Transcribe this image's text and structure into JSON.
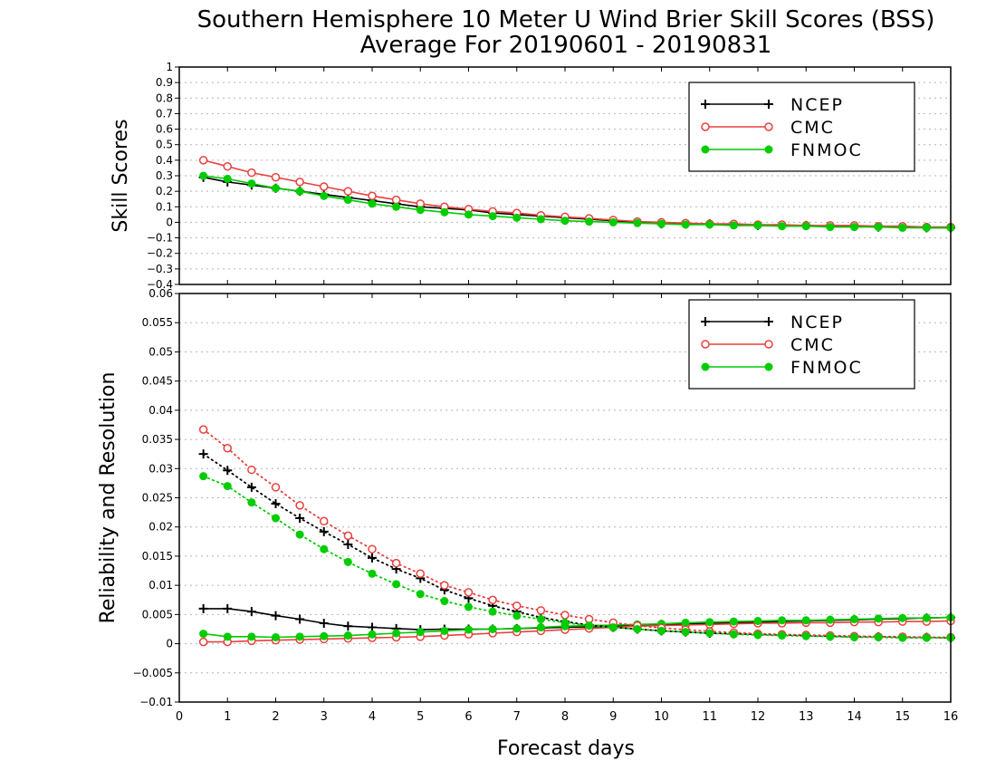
{
  "title_line1": "Southern Hemisphere 10 Meter U Wind Brier Skill Scores (BSS)",
  "title_line2": "Average For 20190601 - 20190831",
  "xlabel": "Forecast days",
  "colors": {
    "NCEP": "#000000",
    "CMC": "#e8403e",
    "FNMOC": "#00cc00"
  },
  "chart_data": [
    {
      "type": "line",
      "ylabel": "Skill Scores",
      "xlim": [
        0,
        16
      ],
      "ylim": [
        -0.4,
        1
      ],
      "x_ticks": [
        "0",
        "1",
        "2",
        "3",
        "4",
        "5",
        "6",
        "7",
        "8",
        "9",
        "10",
        "11",
        "12",
        "13",
        "14",
        "15",
        "16"
      ],
      "y_ticks": [
        "−0.4",
        "−0.3",
        "−0.2",
        "−0.1",
        "0",
        "0.1",
        "0.2",
        "0.3",
        "0.4",
        "0.5",
        "0.6",
        "0.7",
        "0.8",
        "0.9",
        "1"
      ],
      "grid": true,
      "legend_position": "top-right",
      "x": [
        0.5,
        1,
        1.5,
        2,
        2.5,
        3,
        3.5,
        4,
        4.5,
        5,
        5.5,
        6,
        6.5,
        7,
        7.5,
        8,
        8.5,
        9,
        9.5,
        10,
        10.5,
        11,
        11.5,
        12,
        12.5,
        13,
        13.5,
        14,
        14.5,
        15,
        15.5,
        16
      ],
      "series": [
        {
          "name": "NCEP",
          "marker": "plus",
          "line": "solid",
          "values": [
            0.29,
            0.26,
            0.24,
            0.22,
            0.2,
            0.18,
            0.16,
            0.14,
            0.12,
            0.1,
            0.09,
            0.08,
            0.06,
            0.05,
            0.04,
            0.03,
            0.02,
            0.01,
            0.0,
            -0.01,
            -0.01,
            -0.01,
            -0.015,
            -0.02,
            -0.02,
            -0.02,
            -0.025,
            -0.025,
            -0.03,
            -0.03,
            -0.035,
            -0.035
          ]
        },
        {
          "name": "CMC",
          "marker": "open-circle",
          "line": "solid",
          "values": [
            0.4,
            0.36,
            0.32,
            0.29,
            0.26,
            0.23,
            0.2,
            0.17,
            0.145,
            0.12,
            0.1,
            0.085,
            0.07,
            0.06,
            0.045,
            0.035,
            0.025,
            0.015,
            0.005,
            0.0,
            -0.005,
            -0.01,
            -0.01,
            -0.015,
            -0.015,
            -0.02,
            -0.02,
            -0.02,
            -0.025,
            -0.025,
            -0.03,
            -0.03
          ]
        },
        {
          "name": "FNMOC",
          "marker": "filled-circle",
          "line": "solid",
          "values": [
            0.3,
            0.28,
            0.25,
            0.22,
            0.2,
            0.17,
            0.145,
            0.12,
            0.1,
            0.08,
            0.065,
            0.05,
            0.04,
            0.03,
            0.02,
            0.01,
            0.005,
            0.0,
            -0.005,
            -0.01,
            -0.015,
            -0.015,
            -0.02,
            -0.02,
            -0.025,
            -0.025,
            -0.03,
            -0.03,
            -0.03,
            -0.035,
            -0.035,
            -0.035
          ]
        }
      ]
    },
    {
      "type": "line",
      "ylabel": "Reliability and Resolution",
      "xlim": [
        0,
        16
      ],
      "ylim": [
        -0.01,
        0.06
      ],
      "x_ticks": [
        "0",
        "1",
        "2",
        "3",
        "4",
        "5",
        "6",
        "7",
        "8",
        "9",
        "10",
        "11",
        "12",
        "13",
        "14",
        "15",
        "16"
      ],
      "y_ticks": [
        "−0.01",
        "−0.005",
        "0",
        "0.005",
        "0.01",
        "0.015",
        "0.02",
        "0.025",
        "0.03",
        "0.035",
        "0.04",
        "0.045",
        "0.05",
        "0.055",
        "0.06"
      ],
      "grid": true,
      "legend_position": "top-right",
      "x": [
        0.5,
        1,
        1.5,
        2,
        2.5,
        3,
        3.5,
        4,
        4.5,
        5,
        5.5,
        6,
        6.5,
        7,
        7.5,
        8,
        8.5,
        9,
        9.5,
        10,
        10.5,
        11,
        11.5,
        12,
        12.5,
        13,
        13.5,
        14,
        14.5,
        15,
        15.5,
        16
      ],
      "series": [
        {
          "name": "NCEP",
          "marker": "plus",
          "line": "solid",
          "component": "reliability",
          "values": [
            0.006,
            0.006,
            0.0055,
            0.0048,
            0.0042,
            0.0035,
            0.003,
            0.0028,
            0.0026,
            0.0024,
            0.0025,
            0.0025,
            0.0025,
            0.0026,
            0.0027,
            0.0028,
            0.0029,
            0.003,
            0.0031,
            0.0033,
            0.0034,
            0.0035,
            0.0036,
            0.0037,
            0.0038,
            0.0039,
            0.004,
            0.0041,
            0.0042,
            0.0043,
            0.0044,
            0.0045
          ]
        },
        {
          "name": "CMC",
          "marker": "open-circle",
          "line": "solid",
          "component": "reliability",
          "values": [
            0.0003,
            0.0003,
            0.0005,
            0.0006,
            0.0007,
            0.0008,
            0.0009,
            0.001,
            0.0011,
            0.0012,
            0.0014,
            0.0016,
            0.0018,
            0.002,
            0.0022,
            0.0024,
            0.0026,
            0.0028,
            0.003,
            0.0031,
            0.0032,
            0.0033,
            0.0034,
            0.0035,
            0.0035,
            0.0036,
            0.0036,
            0.0037,
            0.0037,
            0.0038,
            0.0038,
            0.0039
          ]
        },
        {
          "name": "FNMOC",
          "marker": "filled-circle",
          "line": "solid",
          "component": "reliability",
          "values": [
            0.0017,
            0.0012,
            0.0012,
            0.0011,
            0.0012,
            0.0013,
            0.0014,
            0.0016,
            0.0018,
            0.002,
            0.0022,
            0.0024,
            0.0025,
            0.0026,
            0.0028,
            0.003,
            0.0031,
            0.0032,
            0.0033,
            0.0034,
            0.0036,
            0.0037,
            0.0038,
            0.0039,
            0.004,
            0.004,
            0.0041,
            0.0042,
            0.0043,
            0.0044,
            0.0044,
            0.0045
          ]
        },
        {
          "name": "NCEP",
          "marker": "plus",
          "line": "dotted",
          "component": "resolution",
          "values": [
            0.0325,
            0.0297,
            0.0268,
            0.024,
            0.0215,
            0.0192,
            0.017,
            0.0147,
            0.0128,
            0.0112,
            0.0092,
            0.0078,
            0.0065,
            0.0055,
            0.0045,
            0.0038,
            0.0032,
            0.0028,
            0.0025,
            0.0022,
            0.002,
            0.0018,
            0.0017,
            0.0016,
            0.0015,
            0.0014,
            0.0013,
            0.0012,
            0.0012,
            0.0011,
            0.0011,
            0.001
          ]
        },
        {
          "name": "CMC",
          "marker": "open-circle",
          "line": "dotted",
          "component": "resolution",
          "values": [
            0.0367,
            0.0335,
            0.0298,
            0.0268,
            0.0237,
            0.021,
            0.0185,
            0.0162,
            0.0138,
            0.012,
            0.01,
            0.0088,
            0.0075,
            0.0065,
            0.0057,
            0.0049,
            0.0042,
            0.0036,
            0.0031,
            0.0027,
            0.0024,
            0.0021,
            0.0019,
            0.0017,
            0.0016,
            0.0015,
            0.0014,
            0.0013,
            0.0012,
            0.0012,
            0.0011,
            0.0011
          ]
        },
        {
          "name": "FNMOC",
          "marker": "filled-circle",
          "line": "dotted",
          "component": "resolution",
          "values": [
            0.0287,
            0.027,
            0.0242,
            0.0215,
            0.0187,
            0.0162,
            0.014,
            0.012,
            0.0102,
            0.0085,
            0.0073,
            0.0063,
            0.0055,
            0.0048,
            0.0042,
            0.0036,
            0.0031,
            0.0028,
            0.0025,
            0.0022,
            0.002,
            0.0018,
            0.0016,
            0.0015,
            0.0014,
            0.0013,
            0.0012,
            0.0011,
            0.0011,
            0.001,
            0.001,
            0.001
          ]
        }
      ]
    }
  ]
}
